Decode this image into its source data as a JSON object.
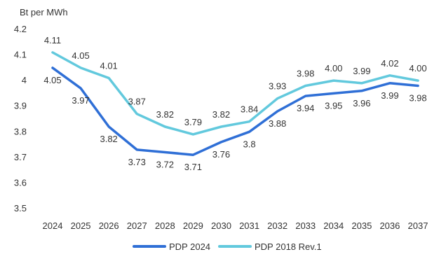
{
  "chart_data": {
    "type": "line",
    "unit_label": "Bt per MWh",
    "x": [
      2024,
      2025,
      2026,
      2027,
      2028,
      2029,
      2030,
      2031,
      2032,
      2033,
      2034,
      2035,
      2036,
      2037
    ],
    "x_labels": [
      "2024",
      "2025",
      "2026",
      "2027",
      "2028",
      "2029",
      "2030",
      "2031",
      "2032",
      "2033",
      "2034",
      "2035",
      "2036",
      "2037"
    ],
    "ylim": [
      3.5,
      4.2
    ],
    "y_ticks": [
      "3.5",
      "3.6",
      "3.7",
      "3.8",
      "3.9",
      "4",
      "4.1",
      "4.2"
    ],
    "grid": false,
    "legend_position": "bottom",
    "series": [
      {
        "name": "PDP 2024",
        "color": "#2f6fd6",
        "values": [
          4.05,
          3.97,
          3.82,
          3.73,
          3.72,
          3.71,
          3.76,
          3.8,
          3.88,
          3.94,
          3.95,
          3.96,
          3.99,
          3.98
        ],
        "labels": [
          "4.05",
          "3.97",
          "3.82",
          "3.73",
          "3.72",
          "3.71",
          "3.76",
          "3.8",
          "3.88",
          "3.94",
          "3.95",
          "3.96",
          "3.99",
          "3.98"
        ]
      },
      {
        "name": "PDP 2018 Rev.1",
        "color": "#62c9dd",
        "values": [
          4.11,
          4.05,
          4.01,
          3.87,
          3.82,
          3.79,
          3.82,
          3.84,
          3.93,
          3.98,
          4.0,
          3.99,
          4.02,
          4.0
        ],
        "labels": [
          "4.11",
          "4.05",
          "4.01",
          "3.87",
          "3.82",
          "3.79",
          "3.82",
          "3.84",
          "3.93",
          "3.98",
          "4.00",
          "3.99",
          "4.02",
          "4.00"
        ]
      }
    ]
  }
}
